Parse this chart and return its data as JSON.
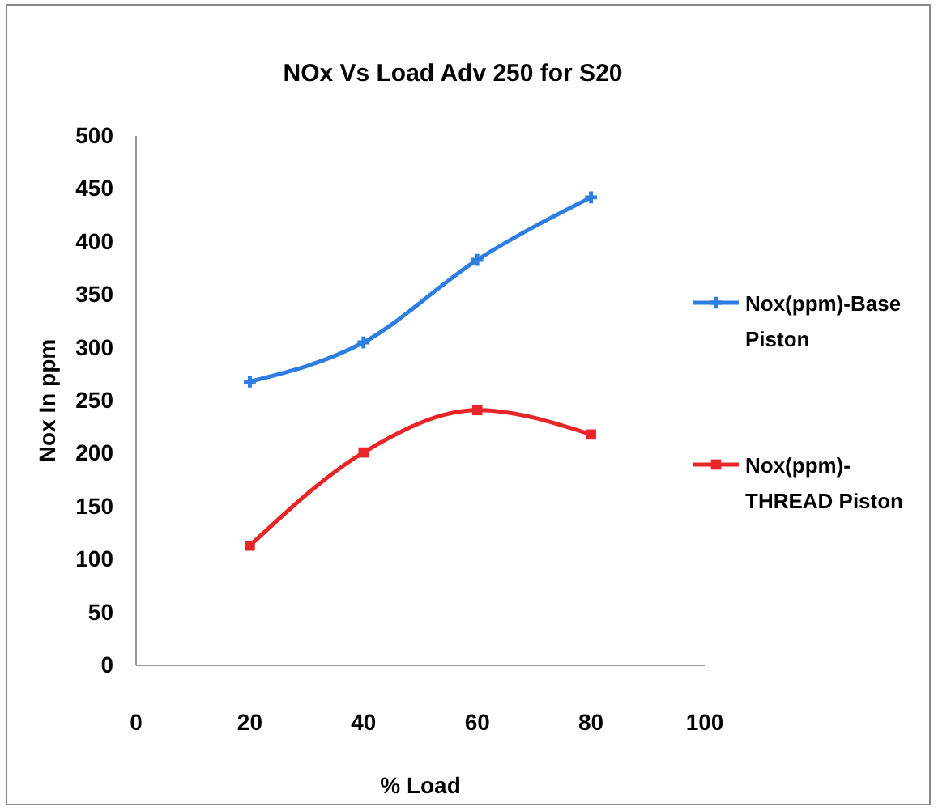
{
  "chart_data": {
    "type": "line",
    "title": "NOx Vs Load Adv 250 for S20",
    "xlabel": "% Load",
    "ylabel": "Nox In ppm",
    "x": [
      20,
      40,
      60,
      80
    ],
    "series": [
      {
        "name": "Nox(ppm)-Base Piston",
        "color": "#2e7de0",
        "marker": "cross",
        "values": [
          268,
          305,
          383,
          442
        ]
      },
      {
        "name": "Nox(ppm)-THREAD Piston",
        "color": "#e8262a",
        "marker": "square",
        "values": [
          113,
          201,
          241,
          218
        ]
      }
    ],
    "xlim": [
      0,
      100
    ],
    "xticks": [
      0,
      20,
      40,
      60,
      80,
      100
    ],
    "ylim": [
      0,
      500
    ],
    "yticks": [
      0,
      50,
      100,
      150,
      200,
      250,
      300,
      350,
      400,
      450,
      500
    ],
    "grid": false,
    "legend": "right",
    "line_style": "solid"
  }
}
